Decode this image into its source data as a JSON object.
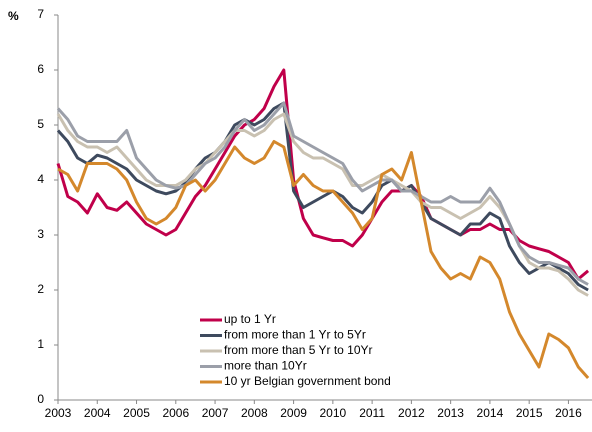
{
  "chart_data": {
    "type": "line",
    "y_label": "%",
    "x": [
      2003,
      2003.25,
      2003.5,
      2003.75,
      2004,
      2004.25,
      2004.5,
      2004.75,
      2005,
      2005.25,
      2005.5,
      2005.75,
      2006,
      2006.25,
      2006.5,
      2006.75,
      2007,
      2007.25,
      2007.5,
      2007.75,
      2008,
      2008.25,
      2008.5,
      2008.75,
      2009,
      2009.25,
      2009.5,
      2009.75,
      2010,
      2010.25,
      2010.5,
      2010.75,
      2011,
      2011.25,
      2011.5,
      2011.75,
      2012,
      2012.25,
      2012.5,
      2012.75,
      2013,
      2013.25,
      2013.5,
      2013.75,
      2014,
      2014.25,
      2014.5,
      2014.75,
      2015,
      2015.25,
      2015.5,
      2015.75,
      2016,
      2016.25,
      2016.5
    ],
    "series": [
      {
        "name": "up to 1 Yr",
        "color": "#c0004a",
        "values": [
          4.3,
          3.7,
          3.6,
          3.4,
          3.75,
          3.5,
          3.45,
          3.6,
          3.4,
          3.2,
          3.1,
          3.0,
          3.1,
          3.4,
          3.7,
          3.9,
          4.2,
          4.5,
          4.8,
          5.0,
          5.1,
          5.3,
          5.7,
          6.0,
          4.0,
          3.3,
          3.0,
          2.95,
          2.9,
          2.9,
          2.8,
          3.0,
          3.3,
          3.6,
          3.8,
          3.8,
          3.9,
          3.7,
          3.3,
          3.2,
          3.1,
          3.0,
          3.1,
          3.1,
          3.2,
          3.1,
          3.1,
          2.9,
          2.8,
          2.75,
          2.7,
          2.6,
          2.5,
          2.2,
          2.35
        ]
      },
      {
        "name": "from more than 1 Yr to 5Yr",
        "color": "#3e4a5e",
        "values": [
          4.9,
          4.7,
          4.4,
          4.3,
          4.45,
          4.4,
          4.3,
          4.2,
          4.0,
          3.9,
          3.8,
          3.75,
          3.8,
          3.95,
          4.2,
          4.4,
          4.5,
          4.7,
          5.0,
          5.1,
          5.0,
          5.1,
          5.3,
          5.4,
          3.8,
          3.5,
          3.6,
          3.7,
          3.8,
          3.7,
          3.5,
          3.4,
          3.6,
          3.9,
          4.0,
          3.8,
          3.9,
          3.6,
          3.3,
          3.2,
          3.1,
          3.0,
          3.2,
          3.2,
          3.4,
          3.3,
          2.8,
          2.5,
          2.3,
          2.4,
          2.5,
          2.4,
          2.3,
          2.1,
          2.0
        ]
      },
      {
        "name": "from more than 5 Yr to 10Yr",
        "color": "#c9c1b1",
        "values": [
          5.2,
          4.9,
          4.7,
          4.6,
          4.6,
          4.5,
          4.6,
          4.4,
          4.2,
          4.0,
          3.9,
          3.9,
          3.9,
          4.0,
          4.2,
          4.3,
          4.5,
          4.7,
          4.9,
          4.9,
          4.8,
          4.9,
          5.1,
          5.2,
          4.7,
          4.5,
          4.4,
          4.4,
          4.3,
          4.2,
          3.9,
          3.9,
          4.0,
          4.1,
          4.0,
          3.9,
          3.8,
          3.6,
          3.5,
          3.5,
          3.4,
          3.3,
          3.4,
          3.5,
          3.7,
          3.5,
          3.2,
          2.8,
          2.5,
          2.4,
          2.4,
          2.35,
          2.2,
          2.0,
          1.9
        ]
      },
      {
        "name": "more than 10Yr",
        "color": "#9b9fa9",
        "values": [
          5.3,
          5.1,
          4.8,
          4.7,
          4.7,
          4.7,
          4.7,
          4.9,
          4.4,
          4.2,
          4.0,
          3.9,
          3.85,
          3.9,
          4.1,
          4.3,
          4.4,
          4.6,
          4.9,
          5.1,
          4.9,
          5.0,
          5.2,
          5.4,
          4.8,
          4.7,
          4.6,
          4.5,
          4.4,
          4.3,
          4.0,
          3.8,
          3.9,
          4.0,
          4.0,
          3.8,
          3.8,
          3.7,
          3.6,
          3.6,
          3.7,
          3.6,
          3.6,
          3.6,
          3.85,
          3.6,
          3.2,
          2.8,
          2.6,
          2.5,
          2.5,
          2.45,
          2.4,
          2.2,
          2.1
        ]
      },
      {
        "name": "10 yr Belgian government bond",
        "color": "#d4882c",
        "values": [
          4.2,
          4.1,
          3.8,
          4.3,
          4.3,
          4.3,
          4.2,
          4.0,
          3.6,
          3.3,
          3.2,
          3.3,
          3.5,
          3.9,
          4.0,
          3.8,
          4.0,
          4.3,
          4.6,
          4.4,
          4.3,
          4.4,
          4.7,
          4.6,
          3.9,
          4.1,
          3.9,
          3.8,
          3.8,
          3.6,
          3.4,
          3.1,
          3.3,
          4.1,
          4.2,
          4.0,
          4.5,
          3.6,
          2.7,
          2.4,
          2.2,
          2.3,
          2.2,
          2.6,
          2.5,
          2.2,
          1.6,
          1.2,
          0.9,
          0.6,
          1.2,
          1.1,
          0.95,
          0.6,
          0.4
        ]
      }
    ],
    "xlim": [
      2003,
      2016.6
    ],
    "xticks": [
      2003,
      2004,
      2005,
      2006,
      2007,
      2008,
      2009,
      2010,
      2011,
      2012,
      2013,
      2014,
      2015,
      2016
    ],
    "ylim": [
      0,
      7
    ],
    "yticks": [
      0,
      1,
      2,
      3,
      4,
      5,
      6,
      7
    ]
  }
}
